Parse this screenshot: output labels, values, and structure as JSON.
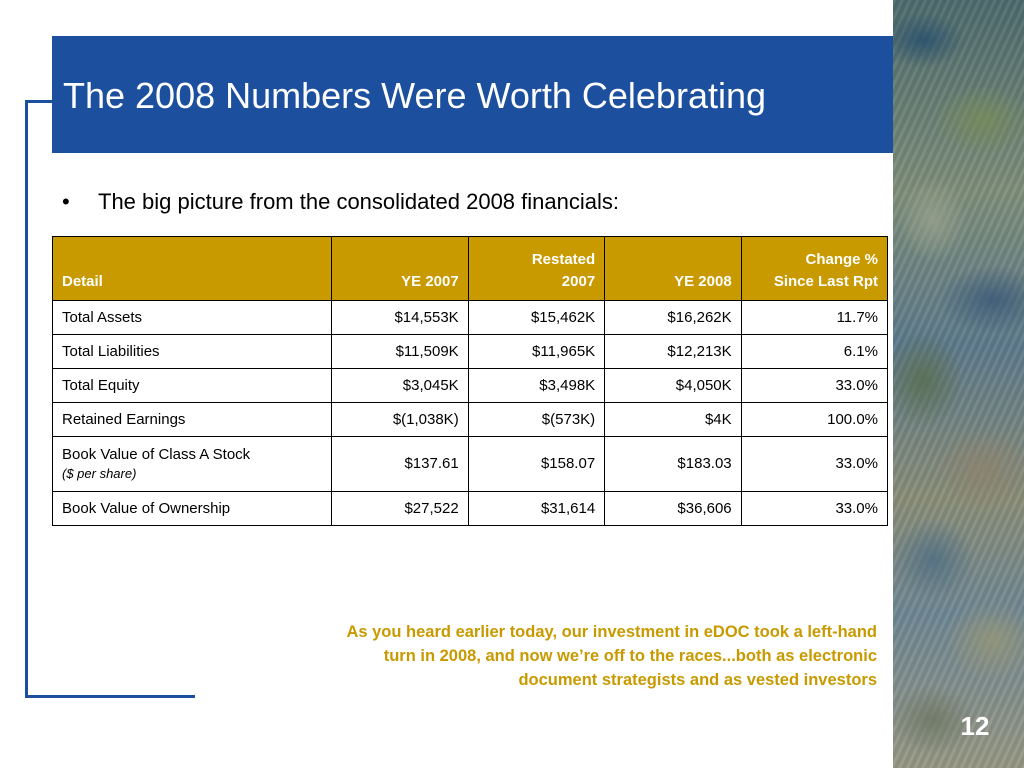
{
  "slide": {
    "title": "The 2008 Numbers Were Worth Celebrating",
    "bullet_symbol": "•",
    "bullet_text": "The big picture from the consolidated 2008 financials:",
    "callout_text": "As you heard earlier today, our investment in eDOC took a left-hand turn in 2008, and now we’re off to the races...both as electronic document strategists and as vested investors",
    "page_number": "12"
  },
  "table": {
    "headers": {
      "detail": "Detail",
      "ye2007": "YE 2007",
      "restated_line1": "Restated",
      "restated_line2": "2007",
      "ye2008": "YE 2008",
      "change_line1": "Change %",
      "change_line2": "Since Last Rpt"
    },
    "rows": [
      {
        "label": "Total Assets",
        "note": "",
        "ye2007": "$14,553K",
        "restated": "$15,462K",
        "ye2008": "$16,262K",
        "change": "11.7%"
      },
      {
        "label": "Total Liabilities",
        "note": "",
        "ye2007": "$11,509K",
        "restated": "$11,965K",
        "ye2008": "$12,213K",
        "change": "6.1%"
      },
      {
        "label": "Total Equity",
        "note": "",
        "ye2007": "$3,045K",
        "restated": "$3,498K",
        "ye2008": "$4,050K",
        "change": "33.0%"
      },
      {
        "label": "Retained Earnings",
        "note": "",
        "ye2007": "$(1,038K)",
        "restated": "$(573K)",
        "ye2008": "$4K",
        "change": "100.0%"
      },
      {
        "label": "Book Value of Class A Stock",
        "note": "($ per share)",
        "ye2007": "$137.61",
        "restated": "$158.07",
        "ye2008": "$183.03",
        "change": "33.0%"
      },
      {
        "label": "Book Value of Ownership",
        "note": "",
        "ye2007": "$27,522",
        "restated": "$31,614",
        "ye2008": "$36,606",
        "change": "33.0%"
      }
    ]
  },
  "colors": {
    "title_bar": "#1c4f9e",
    "header_fill": "#c99a00",
    "callout_text": "#c99a00"
  }
}
